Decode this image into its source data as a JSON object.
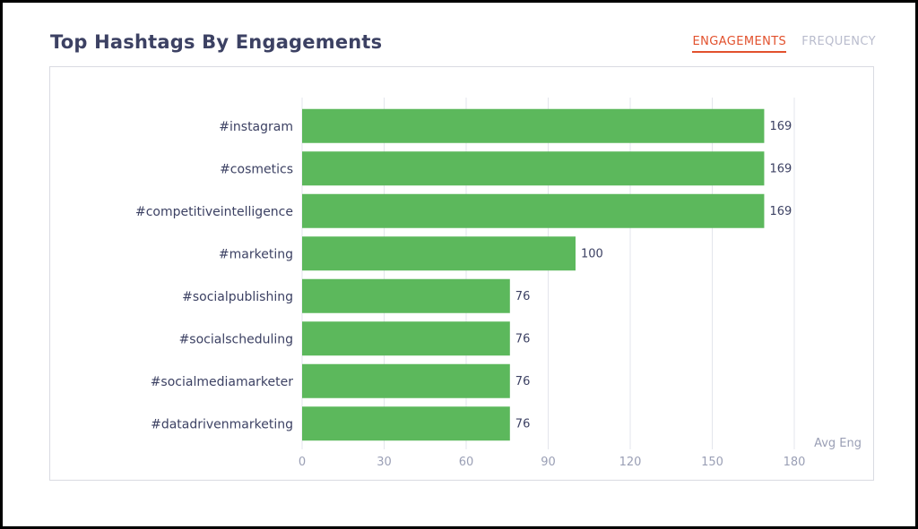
{
  "header": {
    "title": "Top Hashtags By Engagements",
    "tabs": [
      {
        "label": "ENGAGEMENTS",
        "active": true
      },
      {
        "label": "FREQUENCY",
        "active": false
      }
    ]
  },
  "colors": {
    "bar": "#5cb85c",
    "accent": "#e2512d",
    "title": "#3c4163",
    "muted": "#b9bccd"
  },
  "chart_data": {
    "type": "bar",
    "orientation": "horizontal",
    "categories": [
      "#instagram",
      "#cosmetics",
      "#competitiveintelligence",
      "#marketing",
      "#socialpublishing",
      "#socialscheduling",
      "#socialmediamarketer",
      "#datadrivenmarketing"
    ],
    "values": [
      169,
      169,
      169,
      100,
      76,
      76,
      76,
      76
    ],
    "xlabel": "Avg Eng",
    "xlim": [
      0,
      180
    ],
    "xticks": [
      0,
      30,
      60,
      90,
      120,
      150,
      180
    ],
    "grid": "vertical"
  }
}
